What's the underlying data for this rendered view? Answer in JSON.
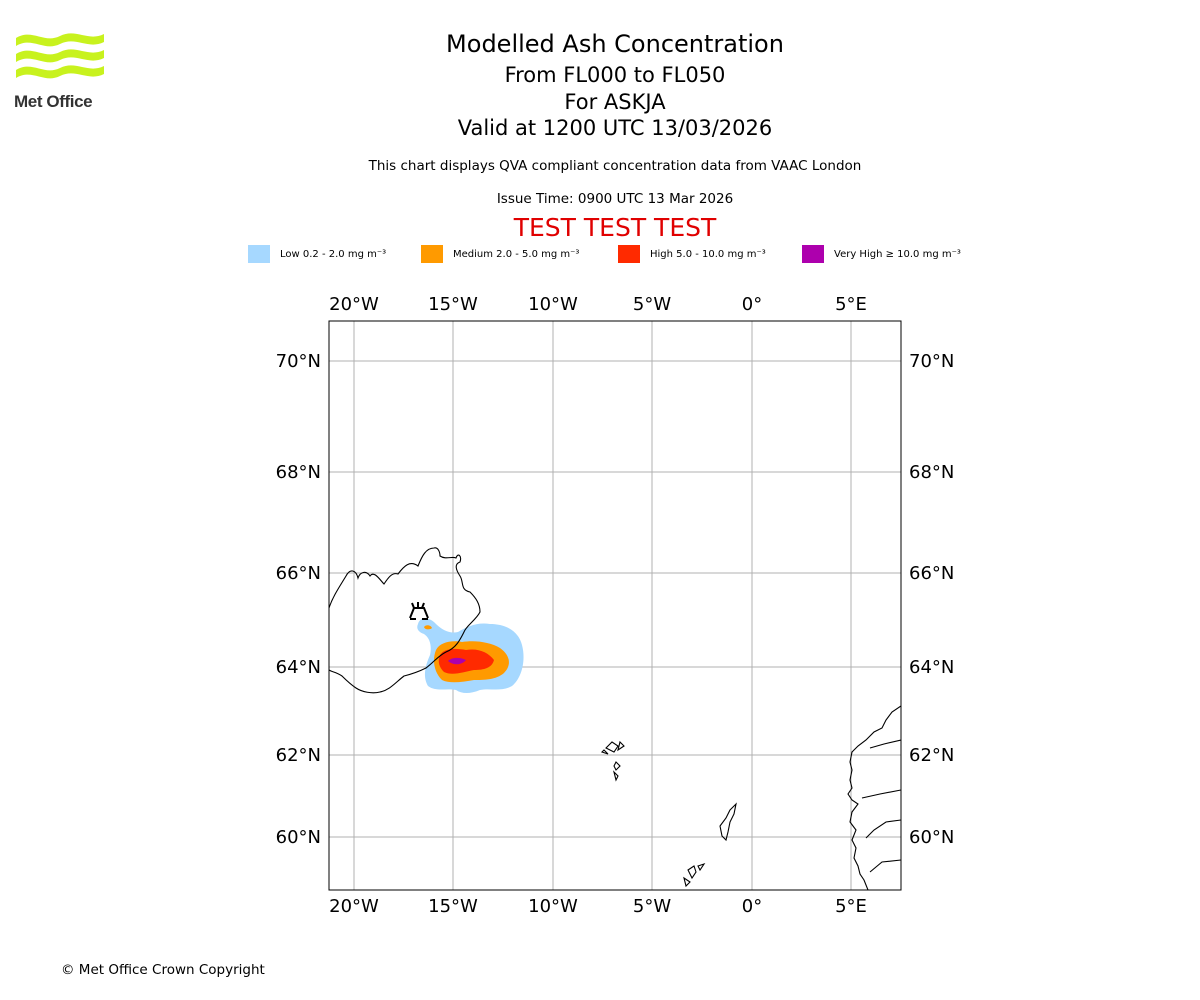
{
  "logo": {
    "name": "Met Office"
  },
  "header": {
    "title": "Modelled Ash Concentration",
    "level_range": "From FL000 to FL050",
    "volcano": "For ASKJA",
    "valid_time": "Valid at 1200 UTC 13/03/2026",
    "qva_note": "This chart displays QVA compliant concentration data from VAAC London",
    "issue_time": "Issue Time: 0900 UTC 13 Mar 2026",
    "test_banner": "TEST TEST TEST"
  },
  "legend": [
    {
      "label": "Low 0.2 - 2.0 mg m⁻³",
      "color": "#a6d8ff"
    },
    {
      "label": "Medium 2.0 - 5.0 mg m⁻³",
      "color": "#ff9a00"
    },
    {
      "label": "High 5.0 - 10.0 mg m⁻³",
      "color": "#ff2a00"
    },
    {
      "label": "Very High  ≥  10.0 mg m⁻³",
      "color": "#ad00ad"
    }
  ],
  "map": {
    "lon_labels": [
      "20°W",
      "15°W",
      "10°W",
      "5°W",
      "0°",
      "5°E"
    ],
    "lat_labels": [
      "70°N",
      "68°N",
      "66°N",
      "64°N",
      "62°N",
      "60°N"
    ],
    "volcano_marker": "volcano-icon",
    "colors": {
      "grid": "#b0b0b0",
      "coast": "#000000"
    }
  },
  "footer": {
    "copyright": "© Met Office Crown Copyright"
  }
}
